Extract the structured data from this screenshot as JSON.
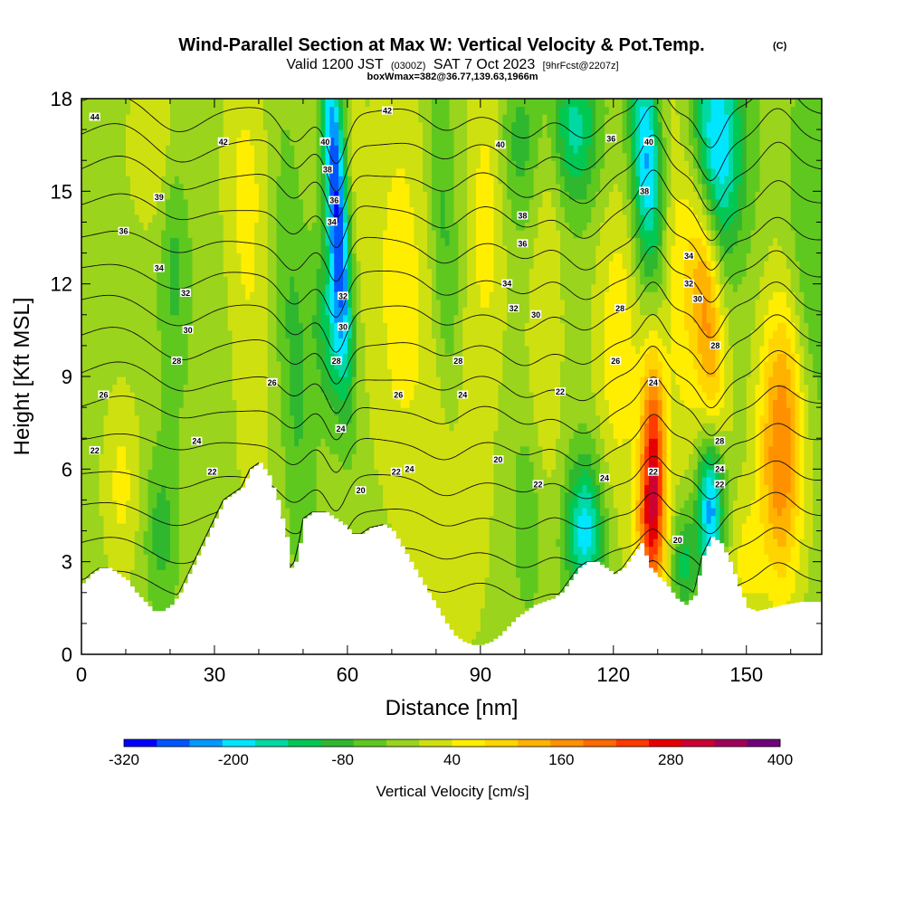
{
  "chart_data": {
    "type": "heatmap",
    "title": "Wind-Parallel Section at Max W: Vertical Velocity & Pot.Temp.",
    "title_mark": "(C)",
    "subtitle": {
      "valid": "Valid 1200 JST",
      "utc": "(0300Z)",
      "date": "SAT 7 Oct 2023",
      "fcst": "[9hrFcst@2207z]"
    },
    "box_info": "boxWmax=382@36.77,139.63,1966m",
    "xlabel": "Distance [nm]",
    "ylabel": "Height [Kft MSL]",
    "xlim": [
      0,
      167
    ],
    "ylim": [
      0,
      18
    ],
    "xticks": [
      0,
      30,
      60,
      90,
      120,
      150
    ],
    "yticks": [
      0,
      3,
      6,
      9,
      12,
      15,
      18
    ],
    "colorbar": {
      "label": "Vertical Velocity [cm/s]",
      "min": -320,
      "max": 400,
      "step": 40,
      "tick_labels": [
        "-320",
        "-200",
        "-80",
        "40",
        "160",
        "280",
        "400"
      ],
      "tick_values": [
        -320,
        -200,
        -80,
        40,
        160,
        280,
        400
      ],
      "colors": [
        "#0000ff",
        "#0055ff",
        "#0099ff",
        "#00e6ff",
        "#00d9a3",
        "#00c853",
        "#2fb82f",
        "#5fc81f",
        "#9ad41c",
        "#cfe010",
        "#ffee00",
        "#ffd500",
        "#ffb300",
        "#ff9000",
        "#ff6a00",
        "#ff3a00",
        "#e60000",
        "#cc0033",
        "#a0005a",
        "#70007a"
      ]
    },
    "terrain_kft": [
      [
        0,
        2.3
      ],
      [
        2,
        2.6
      ],
      [
        4,
        2.8
      ],
      [
        6,
        2.8
      ],
      [
        8,
        2.6
      ],
      [
        10,
        2.4
      ],
      [
        12,
        2.0
      ],
      [
        14,
        1.7
      ],
      [
        16,
        1.4
      ],
      [
        18,
        1.4
      ],
      [
        20,
        1.6
      ],
      [
        22,
        2.0
      ],
      [
        24,
        2.6
      ],
      [
        26,
        3.2
      ],
      [
        28,
        3.8
      ],
      [
        30,
        4.4
      ],
      [
        32,
        5.0
      ],
      [
        34,
        5.2
      ],
      [
        36,
        5.4
      ],
      [
        38,
        6.0
      ],
      [
        40,
        6.2
      ],
      [
        42,
        5.8
      ],
      [
        44,
        5.0
      ],
      [
        46,
        3.8
      ],
      [
        47,
        2.8
      ],
      [
        48,
        3.0
      ],
      [
        49,
        3.6
      ],
      [
        50,
        4.4
      ],
      [
        52,
        4.6
      ],
      [
        55,
        4.6
      ],
      [
        57,
        4.4
      ],
      [
        59,
        4.2
      ],
      [
        61,
        3.9
      ],
      [
        63,
        3.9
      ],
      [
        65,
        4.1
      ],
      [
        68,
        4.2
      ],
      [
        70,
        4.0
      ],
      [
        72,
        3.5
      ],
      [
        74,
        3.0
      ],
      [
        76,
        2.5
      ],
      [
        78,
        2.0
      ],
      [
        80,
        1.5
      ],
      [
        82,
        1.0
      ],
      [
        84,
        0.6
      ],
      [
        86,
        0.4
      ],
      [
        88,
        0.3
      ],
      [
        90,
        0.3
      ],
      [
        92,
        0.4
      ],
      [
        94,
        0.6
      ],
      [
        96,
        0.9
      ],
      [
        98,
        1.2
      ],
      [
        100,
        1.4
      ],
      [
        102,
        1.6
      ],
      [
        104,
        1.7
      ],
      [
        106,
        1.8
      ],
      [
        108,
        2.0
      ],
      [
        110,
        2.4
      ],
      [
        112,
        2.8
      ],
      [
        114,
        3.0
      ],
      [
        116,
        3.0
      ],
      [
        118,
        2.8
      ],
      [
        120,
        2.6
      ],
      [
        122,
        2.8
      ],
      [
        124,
        3.2
      ],
      [
        126,
        3.6
      ],
      [
        127,
        3.2
      ],
      [
        128,
        2.8
      ],
      [
        130,
        2.5
      ],
      [
        132,
        2.2
      ],
      [
        134,
        1.8
      ],
      [
        136,
        1.6
      ],
      [
        138,
        1.9
      ],
      [
        140,
        3.2
      ],
      [
        142,
        3.8
      ],
      [
        144,
        3.6
      ],
      [
        146,
        3.0
      ],
      [
        148,
        2.2
      ],
      [
        150,
        1.5
      ],
      [
        152,
        1.4
      ],
      [
        155,
        1.5
      ],
      [
        158,
        1.6
      ],
      [
        162,
        1.7
      ],
      [
        167,
        1.7
      ]
    ],
    "w_features": [
      {
        "x": 57.5,
        "y": 15.0,
        "sx": 1.8,
        "sy": 3.8,
        "tilt": -0.35,
        "w": -300
      },
      {
        "x": 56.5,
        "y": 10.5,
        "sx": 3.0,
        "sy": 2.0,
        "tilt": -0.2,
        "w": -120
      },
      {
        "x": 61.0,
        "y": 15.5,
        "sx": 2.0,
        "sy": 4.0,
        "tilt": -0.3,
        "w": 40
      },
      {
        "x": 48.0,
        "y": 9.5,
        "sx": 2.5,
        "sy": 5.0,
        "tilt": -0.3,
        "w": -70
      },
      {
        "x": 38.5,
        "y": 9.0,
        "sx": 3.0,
        "sy": 4.5,
        "tilt": -0.2,
        "w": 50
      },
      {
        "x": 37.0,
        "y": 15.5,
        "sx": 3.5,
        "sy": 2.6,
        "tilt": 0.0,
        "w": 60
      },
      {
        "x": 18.0,
        "y": 16.5,
        "sx": 5.0,
        "sy": 2.0,
        "tilt": 0.0,
        "w": 70
      },
      {
        "x": 21.0,
        "y": 13.5,
        "sx": 2.5,
        "sy": 3.5,
        "tilt": 0.0,
        "w": -80
      },
      {
        "x": 9.0,
        "y": 5.5,
        "sx": 3.0,
        "sy": 2.2,
        "tilt": 0.0,
        "w": 70
      },
      {
        "x": 18.0,
        "y": 4.0,
        "sx": 2.5,
        "sy": 1.8,
        "tilt": 0.0,
        "w": -80
      },
      {
        "x": 72.0,
        "y": 12.0,
        "sx": 5.0,
        "sy": 5.0,
        "tilt": -0.1,
        "w": 80
      },
      {
        "x": 85.0,
        "y": 5.5,
        "sx": 5.0,
        "sy": 4.0,
        "tilt": 0.0,
        "w": 60
      },
      {
        "x": 82.0,
        "y": 13.0,
        "sx": 2.2,
        "sy": 4.5,
        "tilt": -0.3,
        "w": -80
      },
      {
        "x": 91.5,
        "y": 14.5,
        "sx": 3.0,
        "sy": 3.5,
        "tilt": 0.0,
        "w": 80
      },
      {
        "x": 99.0,
        "y": 16.5,
        "sx": 3.5,
        "sy": 2.0,
        "tilt": 0.0,
        "w": -80
      },
      {
        "x": 105.5,
        "y": 15.5,
        "sx": 2.8,
        "sy": 2.5,
        "tilt": 0.0,
        "w": 60
      },
      {
        "x": 111.0,
        "y": 17.0,
        "sx": 4.0,
        "sy": 1.8,
        "tilt": 0.0,
        "w": -160
      },
      {
        "x": 113.5,
        "y": 4.0,
        "sx": 3.0,
        "sy": 1.7,
        "tilt": 0.0,
        "w": -200
      },
      {
        "x": 121.0,
        "y": 10.0,
        "sx": 3.5,
        "sy": 3.5,
        "tilt": 0.0,
        "w": 90
      },
      {
        "x": 129.0,
        "y": 6.2,
        "sx": 2.0,
        "sy": 2.6,
        "tilt": 0.0,
        "w": 300
      },
      {
        "x": 128.0,
        "y": 3.8,
        "sx": 2.8,
        "sy": 1.6,
        "tilt": 0.0,
        "w": 130
      },
      {
        "x": 127.5,
        "y": 16.0,
        "sx": 2.5,
        "sy": 2.8,
        "tilt": -0.3,
        "w": -230
      },
      {
        "x": 135.0,
        "y": 12.5,
        "sx": 3.0,
        "sy": 4.5,
        "tilt": -0.25,
        "w": 90
      },
      {
        "x": 141.0,
        "y": 11.5,
        "sx": 2.5,
        "sy": 3.5,
        "tilt": -0.4,
        "w": 190
      },
      {
        "x": 143.0,
        "y": 16.5,
        "sx": 4.5,
        "sy": 2.5,
        "tilt": -0.1,
        "w": -230
      },
      {
        "x": 142.0,
        "y": 4.8,
        "sx": 2.2,
        "sy": 1.7,
        "tilt": 0.0,
        "w": -260
      },
      {
        "x": 136.0,
        "y": 3.0,
        "sx": 2.0,
        "sy": 1.2,
        "tilt": 0.0,
        "w": -120
      },
      {
        "x": 157.0,
        "y": 6.0,
        "sx": 3.2,
        "sy": 3.0,
        "tilt": -0.2,
        "w": 180
      },
      {
        "x": 160.0,
        "y": 8.5,
        "sx": 3.0,
        "sy": 3.0,
        "tilt": -0.3,
        "w": 110
      },
      {
        "x": 164.0,
        "y": 12.5,
        "sx": 4.0,
        "sy": 4.5,
        "tilt": 0.0,
        "w": -60
      },
      {
        "x": 150.0,
        "y": 3.0,
        "sx": 3.0,
        "sy": 1.5,
        "tilt": 0.0,
        "w": 70
      },
      {
        "x": 104.0,
        "y": 8.5,
        "sx": 3.0,
        "sy": 3.0,
        "tilt": 0.0,
        "w": 60
      },
      {
        "x": 101.0,
        "y": 5.0,
        "sx": 2.5,
        "sy": 2.5,
        "tilt": 0.0,
        "w": -60
      }
    ],
    "theta_contours": {
      "levels": [
        318,
        320,
        322,
        324,
        326,
        328,
        330,
        332,
        334,
        336,
        338,
        340,
        342,
        344,
        346
      ],
      "base_height_kft": [
        2.3,
        3.4,
        4.6,
        5.7,
        6.9,
        8.0,
        9.0,
        10.1,
        11.2,
        12.3,
        13.4,
        14.5,
        15.6,
        16.6,
        17.6
      ],
      "waves": [
        {
          "x": 57.5,
          "amp": -1.6,
          "width": 2.2
        },
        {
          "x": 48.0,
          "amp": -1.0,
          "width": 3.0
        },
        {
          "x": 22.0,
          "amp": -0.6,
          "width": 5.0
        },
        {
          "x": 82.0,
          "amp": -0.7,
          "width": 4.0
        },
        {
          "x": 100.0,
          "amp": -0.8,
          "width": 4.0
        },
        {
          "x": 113.5,
          "amp": -1.0,
          "width": 4.0
        },
        {
          "x": 129.0,
          "amp": 1.2,
          "width": 2.5
        },
        {
          "x": 142.0,
          "amp": -1.2,
          "width": 2.5
        },
        {
          "x": 157.0,
          "amp": 1.0,
          "width": 3.5
        },
        {
          "x": 8.0,
          "amp": 0.5,
          "width": 6.0
        }
      ]
    },
    "contour_labels": [
      {
        "text": "44",
        "x": 3,
        "y": 17.4
      },
      {
        "text": "42",
        "x": 32,
        "y": 16.6
      },
      {
        "text": "40",
        "x": 55,
        "y": 16.6
      },
      {
        "text": "38",
        "x": 55.5,
        "y": 15.7
      },
      {
        "text": "36",
        "x": 57,
        "y": 14.7
      },
      {
        "text": "34",
        "x": 56.5,
        "y": 14.0
      },
      {
        "text": "32",
        "x": 59,
        "y": 11.6
      },
      {
        "text": "30",
        "x": 59,
        "y": 10.6
      },
      {
        "text": "28",
        "x": 57.5,
        "y": 9.5
      },
      {
        "text": "24",
        "x": 58.5,
        "y": 7.3
      },
      {
        "text": "20",
        "x": 63,
        "y": 5.3
      },
      {
        "text": "42",
        "x": 69,
        "y": 17.6
      },
      {
        "text": "39",
        "x": 17.5,
        "y": 14.8
      },
      {
        "text": "36",
        "x": 9.5,
        "y": 13.7
      },
      {
        "text": "34",
        "x": 17.5,
        "y": 12.5
      },
      {
        "text": "32",
        "x": 23.5,
        "y": 11.7
      },
      {
        "text": "30",
        "x": 24,
        "y": 10.5
      },
      {
        "text": "28",
        "x": 21.5,
        "y": 9.5
      },
      {
        "text": "26",
        "x": 5,
        "y": 8.4
      },
      {
        "text": "22",
        "x": 3,
        "y": 6.6
      },
      {
        "text": "24",
        "x": 26,
        "y": 6.9
      },
      {
        "text": "22",
        "x": 29.5,
        "y": 5.9
      },
      {
        "text": "26",
        "x": 43,
        "y": 8.8
      },
      {
        "text": "26",
        "x": 71.5,
        "y": 8.4
      },
      {
        "text": "24",
        "x": 74,
        "y": 6.0
      },
      {
        "text": "22",
        "x": 71,
        "y": 5.9
      },
      {
        "text": "40",
        "x": 94.5,
        "y": 16.5
      },
      {
        "text": "38",
        "x": 99.5,
        "y": 14.2
      },
      {
        "text": "36",
        "x": 99.5,
        "y": 13.3
      },
      {
        "text": "34",
        "x": 96,
        "y": 12.0
      },
      {
        "text": "32",
        "x": 97.5,
        "y": 11.2
      },
      {
        "text": "30",
        "x": 102.5,
        "y": 11.0
      },
      {
        "text": "28",
        "x": 85,
        "y": 9.5
      },
      {
        "text": "24",
        "x": 86,
        "y": 8.4
      },
      {
        "text": "20",
        "x": 94,
        "y": 6.3
      },
      {
        "text": "22",
        "x": 103,
        "y": 5.5
      },
      {
        "text": "22",
        "x": 108,
        "y": 8.5
      },
      {
        "text": "24",
        "x": 118,
        "y": 5.7
      },
      {
        "text": "36",
        "x": 119.5,
        "y": 16.7
      },
      {
        "text": "40",
        "x": 128,
        "y": 16.6
      },
      {
        "text": "38",
        "x": 127,
        "y": 15.0
      },
      {
        "text": "34",
        "x": 137,
        "y": 12.9
      },
      {
        "text": "32",
        "x": 137,
        "y": 12.0
      },
      {
        "text": "30",
        "x": 139,
        "y": 11.5
      },
      {
        "text": "28",
        "x": 121.5,
        "y": 11.2
      },
      {
        "text": "26",
        "x": 120.5,
        "y": 9.5
      },
      {
        "text": "24",
        "x": 129,
        "y": 8.8
      },
      {
        "text": "22",
        "x": 129,
        "y": 5.9
      },
      {
        "text": "20",
        "x": 134.5,
        "y": 3.7
      },
      {
        "text": "28",
        "x": 143,
        "y": 10.0
      },
      {
        "text": "28",
        "x": 144,
        "y": 6.9
      },
      {
        "text": "24",
        "x": 144,
        "y": 6.0
      },
      {
        "text": "22",
        "x": 144,
        "y": 5.5
      }
    ]
  }
}
